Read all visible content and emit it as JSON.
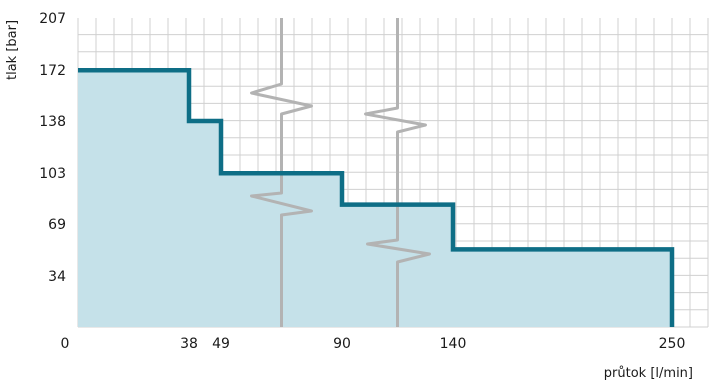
{
  "chart_data": {
    "type": "area",
    "step": "post",
    "xlabel": "průtok [l/min]",
    "ylabel": "tlak [bar]",
    "xlim": [
      0,
      250
    ],
    "ylim": [
      0,
      207
    ],
    "x_ticks": [
      0,
      38,
      49,
      90,
      140,
      250
    ],
    "x_tick_labels": [
      "0",
      "38",
      "49",
      "90",
      "140",
      "250"
    ],
    "y_ticks": [
      34,
      69,
      103,
      138,
      172,
      207
    ],
    "y_tick_labels": [
      "34",
      "69",
      "103",
      "138",
      "172",
      "207"
    ],
    "x_axis_breaks": [
      2,
      3
    ],
    "series": [
      {
        "x": [
          0,
          38,
          49,
          90,
          140,
          250
        ],
        "y": [
          172,
          138,
          103,
          82,
          52,
          52
        ]
      }
    ],
    "grid": true,
    "colors": {
      "line": "#0e6e86",
      "fill": "#c5e1e9",
      "grid": "#d0d0d0",
      "break": "#b3b3b3"
    }
  }
}
